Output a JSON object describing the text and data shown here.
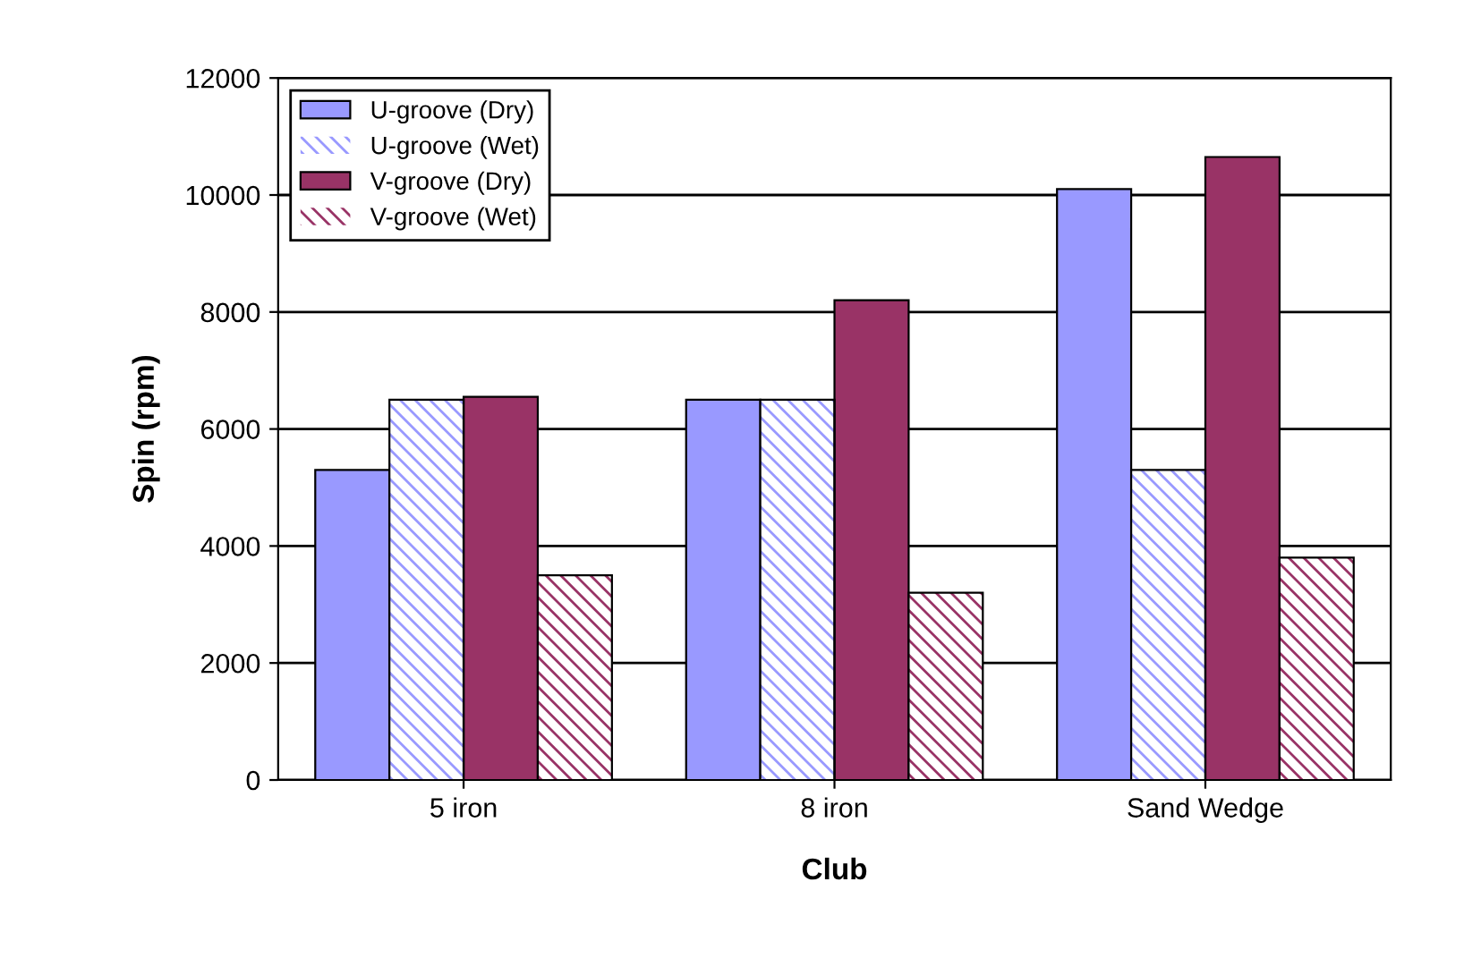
{
  "chart_data": {
    "type": "bar",
    "xlabel": "Club",
    "ylabel": "Spin (rpm)",
    "categories": [
      "5 iron",
      "8 iron",
      "Sand Wedge"
    ],
    "series": [
      {
        "name": "U-groove (Dry)",
        "color": "#9999ff",
        "values": [
          5300,
          6500,
          10100
        ]
      },
      {
        "name": "U-groove (Wet)",
        "color": "#9999ff",
        "values": [
          6500,
          6500,
          5300
        ]
      },
      {
        "name": "V-groove (Dry)",
        "color": "#993366",
        "values": [
          6550,
          8200,
          10650
        ]
      },
      {
        "name": "V-groove (Wet)",
        "color": "#993366",
        "values": [
          3500,
          3200,
          3800
        ]
      }
    ],
    "ylim": [
      0,
      12000
    ],
    "yticks": [
      0,
      2000,
      4000,
      6000,
      8000,
      10000,
      12000
    ],
    "grid": "y",
    "legend": "top left"
  }
}
